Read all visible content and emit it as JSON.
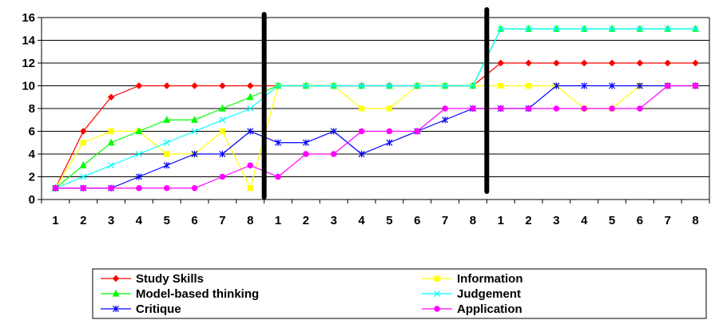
{
  "chart_data": {
    "type": "line",
    "title": "",
    "xlabel": "",
    "ylabel": "",
    "ylim": [
      0,
      16
    ],
    "yticks": [
      "0",
      "2",
      "4",
      "6",
      "8",
      "10",
      "12",
      "14",
      "16"
    ],
    "categories": [
      "1",
      "2",
      "3",
      "4",
      "5",
      "6",
      "7",
      "8",
      "1",
      "2",
      "3",
      "4",
      "5",
      "6",
      "7",
      "8",
      "1",
      "2",
      "3",
      "4",
      "5",
      "6",
      "7",
      "8"
    ],
    "grid": "horizontal",
    "legend_position": "bottom",
    "phase_dividers_after_category_index": [
      8,
      16
    ],
    "series": [
      {
        "name": "Study Skills",
        "color": "#ff0000",
        "marker": "diamond",
        "values": [
          1,
          6,
          9,
          10,
          10,
          10,
          10,
          10,
          10,
          10,
          10,
          10,
          10,
          10,
          10,
          10,
          12,
          12,
          12,
          12,
          12,
          12,
          12,
          12
        ]
      },
      {
        "name": "Information",
        "color": "#ffff00",
        "marker": "square",
        "values": [
          1,
          5,
          6,
          6,
          4,
          4,
          6,
          1,
          10,
          10,
          10,
          8,
          8,
          10,
          10,
          10,
          10,
          10,
          10,
          8,
          8,
          10,
          10,
          10
        ]
      },
      {
        "name": "Model-based thinking",
        "color": "#00ff00",
        "marker": "triangle",
        "values": [
          1,
          3,
          5,
          6,
          7,
          7,
          8,
          9,
          10,
          10,
          10,
          10,
          10,
          10,
          10,
          10,
          15,
          15,
          15,
          15,
          15,
          15,
          15,
          15
        ]
      },
      {
        "name": "Judgement",
        "color": "#00ffff",
        "marker": "x",
        "values": [
          1,
          2,
          3,
          4,
          5,
          6,
          7,
          8,
          10,
          10,
          10,
          10,
          10,
          10,
          10,
          10,
          15,
          15,
          15,
          15,
          15,
          15,
          15,
          15
        ]
      },
      {
        "name": "Critique",
        "color": "#0000ff",
        "marker": "star",
        "values": [
          1,
          1,
          1,
          2,
          3,
          4,
          4,
          6,
          5,
          5,
          6,
          4,
          5,
          6,
          7,
          8,
          8,
          8,
          10,
          10,
          10,
          10,
          10,
          10
        ]
      },
      {
        "name": "Application",
        "color": "#ff00ff",
        "marker": "circle",
        "values": [
          1,
          1,
          1,
          1,
          1,
          1,
          2,
          3,
          2,
          4,
          4,
          6,
          6,
          6,
          8,
          8,
          8,
          8,
          8,
          8,
          8,
          8,
          10,
          10
        ]
      }
    ]
  }
}
